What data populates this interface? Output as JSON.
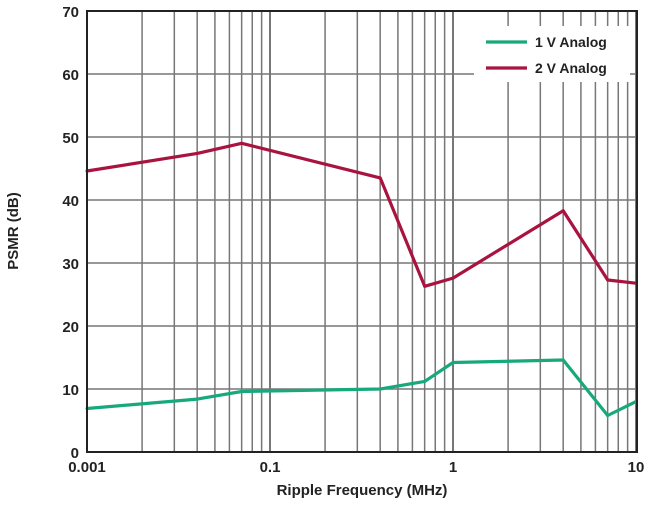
{
  "chart_data": {
    "type": "line",
    "title": "",
    "xlabel": "Ripple Frequency (MHz)",
    "ylabel": "PSMR (dB)",
    "x_scale": "log",
    "xlim": [
      0.001,
      10
    ],
    "ylim": [
      0,
      70
    ],
    "x_ticks": [
      "0.001",
      "0.1",
      "1",
      "10"
    ],
    "y_ticks": [
      "0",
      "10",
      "20",
      "30",
      "40",
      "50",
      "60",
      "70"
    ],
    "grid": true,
    "legend_position": "top-right",
    "x": [
      0.001,
      0.04,
      0.07,
      0.4,
      0.7,
      1,
      4,
      7,
      10
    ],
    "series": [
      {
        "name": "1 V Analog",
        "color": "#17a97b",
        "values": [
          6.9,
          8.4,
          9.6,
          10.0,
          11.2,
          14.2,
          14.6,
          5.8,
          8.0
        ]
      },
      {
        "name": "2 V Analog",
        "color": "#a8133f",
        "values": [
          44.6,
          47.4,
          49.0,
          43.5,
          26.3,
          27.6,
          38.3,
          27.3,
          26.8
        ]
      }
    ]
  }
}
